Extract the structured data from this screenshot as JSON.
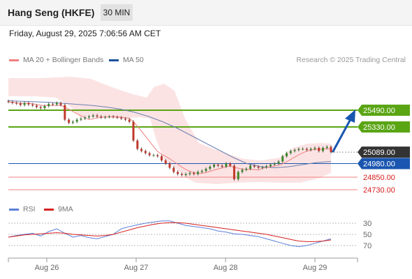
{
  "header": {
    "title": "Hang Seng (HKFE)",
    "timeframe": "30 MIN"
  },
  "timestamp": "Friday, August 29, 2025 7:06:56 AM CET",
  "legend": {
    "ma20_label": "MA 20 + Bollinger Bands",
    "ma50_label": "MA 50",
    "research": "Research © 2025 Trading Central"
  },
  "colors": {
    "resistance": "#5aa514",
    "pivot": "#1a56b0",
    "support": "#f08080",
    "candle_up": "#3a8a2a",
    "candle_down": "#c0392b",
    "bollinger": "#fcdede",
    "ma20": "#f08080",
    "ma50": "#6a7fb0",
    "current_price": "#333333",
    "arrow": "#1a56b0",
    "rsi": "#5a7fd8",
    "rsi_ma": "#d62020"
  },
  "chart_data": {
    "type": "candlestick",
    "x_tick_labels": [
      "Aug 26",
      "Aug 27",
      "Aug 28",
      "Aug 29"
    ],
    "price_levels": [
      {
        "value": 25490,
        "label": "25490.00",
        "kind": "resistance"
      },
      {
        "value": 25330,
        "label": "25330.00",
        "kind": "resistance"
      },
      {
        "value": 25089,
        "label": "25089.00",
        "kind": "current"
      },
      {
        "value": 24980,
        "label": "24980.00",
        "kind": "pivot"
      },
      {
        "value": 24850,
        "label": "24850.00",
        "kind": "support"
      },
      {
        "value": 24730,
        "label": "24730.00",
        "kind": "support"
      }
    ],
    "close_series": [
      25570,
      25560,
      25555,
      25540,
      25560,
      25545,
      25535,
      25520,
      25510,
      25530,
      25550,
      25545,
      25560,
      25540,
      25400,
      25370,
      25380,
      25400,
      25410,
      25420,
      25430,
      25440,
      25430,
      25420,
      25425,
      25430,
      25425,
      25420,
      25410,
      25400,
      25380,
      25200,
      25120,
      25100,
      25080,
      25060,
      25060,
      25050,
      25010,
      24980,
      24940,
      24900,
      24880,
      24870,
      24880,
      24890,
      24880,
      24900,
      24910,
      24930,
      24950,
      24970,
      24960,
      24950,
      24980,
      24960,
      24830,
      24900,
      24920,
      24930,
      24960,
      24950,
      24940,
      24945,
      24955,
      24970,
      24980,
      25000,
      25050,
      25080,
      25100,
      25110,
      25120,
      25120,
      25110,
      25120,
      25130,
      25100,
      25130,
      25140,
      25090
    ],
    "ma50_series": [
      25580,
      25575,
      25570,
      25565,
      25555,
      25545,
      25535,
      25520,
      25500,
      25470,
      25430,
      25380,
      25320,
      25250,
      25180,
      25110,
      25040,
      24980,
      24950,
      24940,
      24950,
      24970,
      24990,
      25000
    ],
    "rsi": {
      "levels": [
        70,
        50,
        30
      ],
      "labels": [
        "70",
        "50",
        "30"
      ],
      "rsi_series": [
        55,
        52,
        50,
        48,
        53,
        45,
        40,
        48,
        55,
        52,
        56,
        58,
        54,
        50,
        40,
        36,
        33,
        30,
        28,
        26,
        26,
        30,
        34,
        36,
        38,
        40,
        44,
        46,
        49,
        50,
        52,
        54,
        58,
        62,
        66,
        70,
        72,
        70,
        66,
        62,
        58
      ],
      "ma_series": [
        55,
        53,
        51,
        50,
        49,
        48,
        47,
        48,
        50,
        51,
        52,
        53,
        52,
        50,
        46,
        42,
        38,
        35,
        32,
        30,
        29,
        29,
        30,
        32,
        34,
        36,
        38,
        40,
        42,
        44,
        46,
        48,
        50,
        53,
        56,
        59,
        62,
        63,
        63,
        62,
        60
      ],
      "legend_rsi": "RSI",
      "legend_ma": "9MA"
    }
  }
}
